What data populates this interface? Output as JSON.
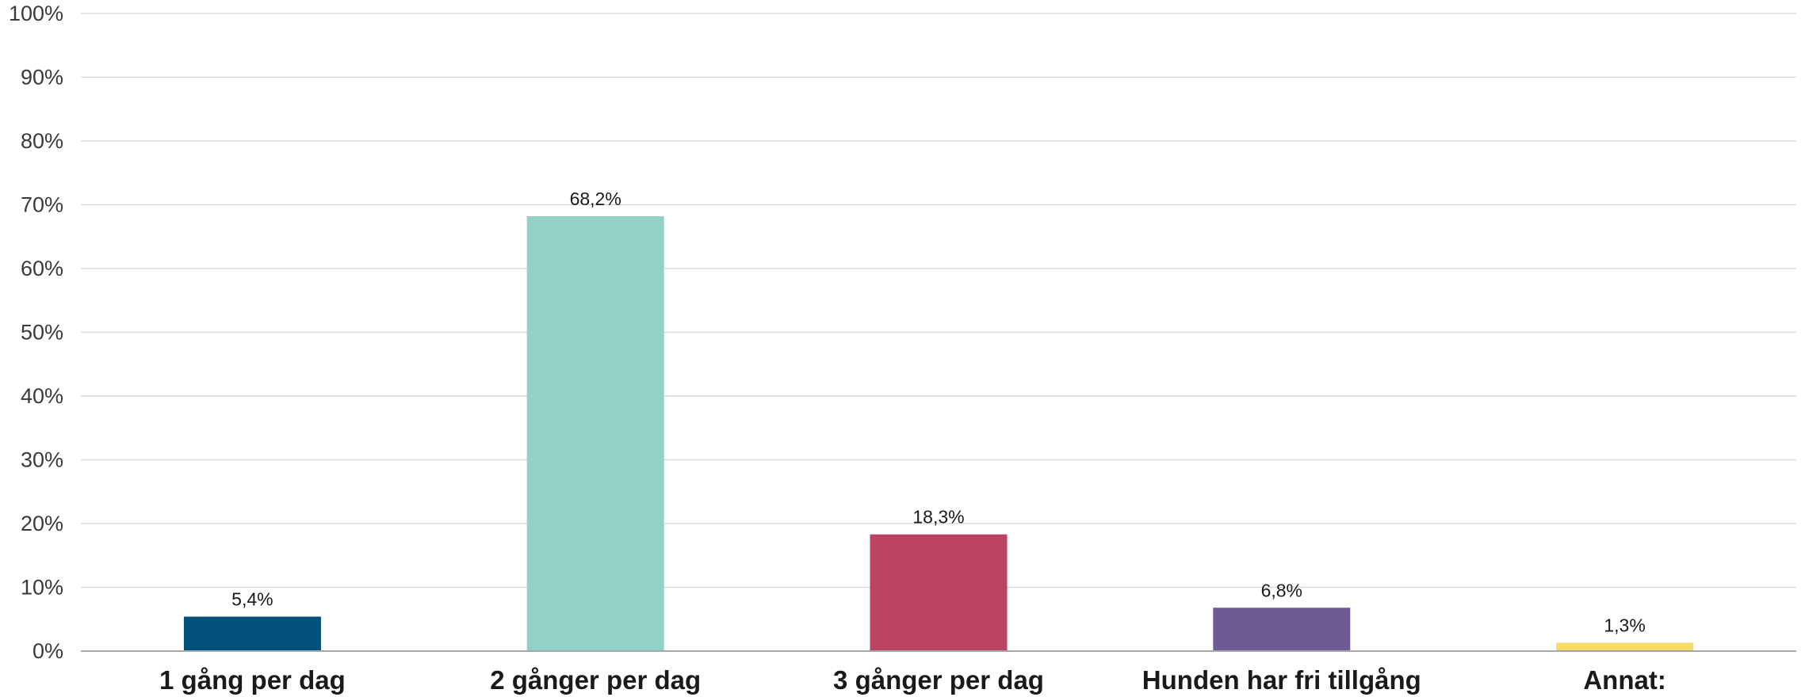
{
  "chart_data": {
    "type": "bar",
    "categories": [
      "1 gång per dag",
      "2 gånger per dag",
      "3 gånger per dag",
      "Hunden har fri tillgång",
      "Annat:"
    ],
    "values": [
      5.4,
      68.2,
      18.3,
      6.8,
      1.3
    ],
    "data_labels": [
      "5,4%",
      "68,2%",
      "18,3%",
      "6,8%",
      "1,3%"
    ],
    "colors": [
      "#00507a",
      "#93d0c7",
      "#bb4464",
      "#6d5b96",
      "#f5dc67"
    ],
    "ylim": [
      0,
      100
    ],
    "yticks": [
      0,
      10,
      20,
      30,
      40,
      50,
      60,
      70,
      80,
      90,
      100
    ],
    "ytick_labels": [
      "0%",
      "10%",
      "20%",
      "30%",
      "40%",
      "50%",
      "60%",
      "70%",
      "80%",
      "90%",
      "100%"
    ],
    "grid": true,
    "legend": "none",
    "title": "",
    "xlabel": "",
    "ylabel": ""
  }
}
